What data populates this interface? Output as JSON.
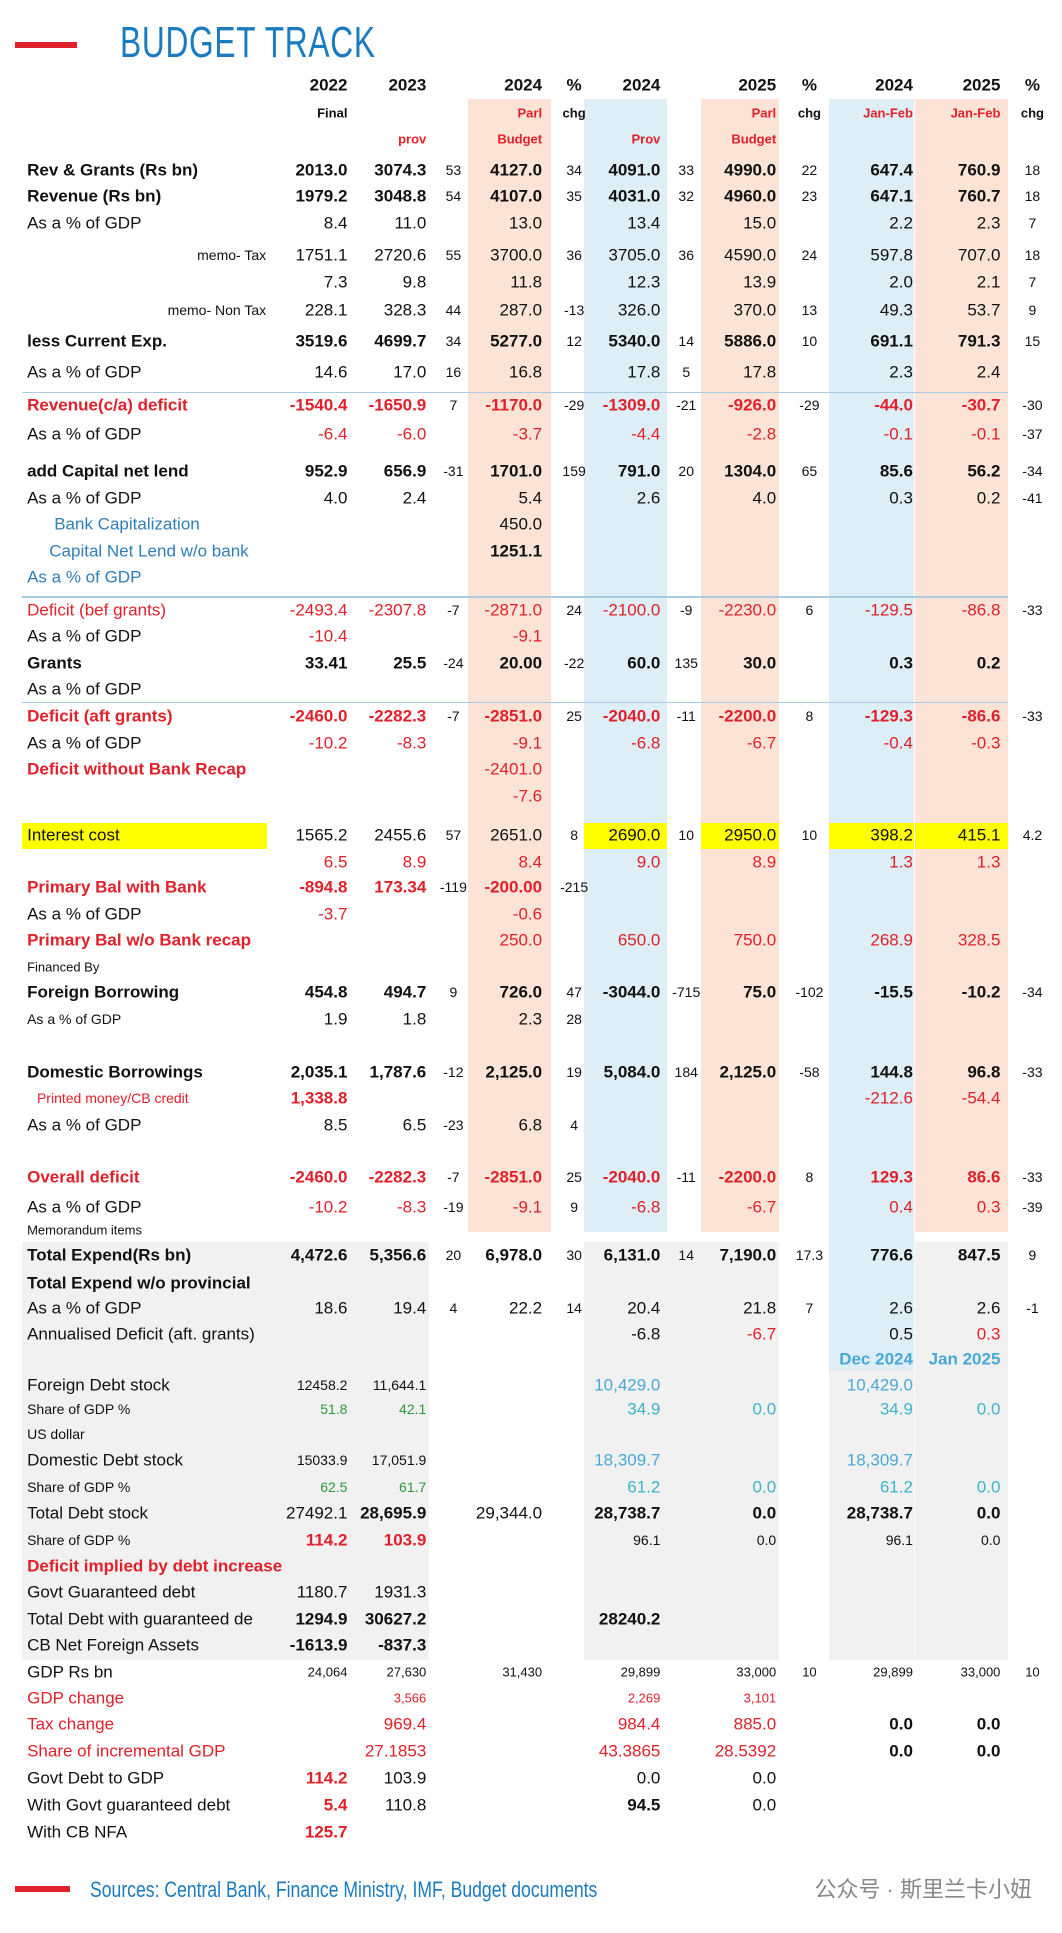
{
  "header": {
    "title": "BUDGET TRACK"
  },
  "columns": [
    [
      "2022",
      "2023",
      null,
      "2024",
      "%",
      "2024",
      null,
      "2025",
      "%",
      "2024",
      "2025",
      "%"
    ],
    [
      "Final",
      null,
      null,
      "Parl",
      "chg",
      null,
      null,
      "Parl",
      "chg",
      "Jan-Feb",
      "Jan-Feb",
      "chg"
    ],
    [
      null,
      "prov",
      null,
      "Budget",
      null,
      "Prov",
      null,
      "Budget",
      null,
      null,
      null,
      null
    ]
  ],
  "rows": [
    {
      "label": "Rev & Grants (Rs bn)",
      "cells": [
        "2013.0",
        "3074.3",
        "53",
        "4127.0",
        "34",
        "4091.0",
        "33",
        "4990.0",
        "22",
        "647.4",
        "760.9",
        "18"
      ]
    },
    {
      "label": "Revenue (Rs bn)",
      "cells": [
        "1979.2",
        "3048.8",
        "54",
        "4107.0",
        "35",
        "4031.0",
        "32",
        "4960.0",
        "23",
        "647.1",
        "760.7",
        "18"
      ]
    },
    {
      "label": "As a % of GDP",
      "cells": [
        "8.4",
        "11.0",
        null,
        "13.0",
        null,
        "13.4",
        null,
        "15.0",
        null,
        "2.2",
        "2.3",
        "7"
      ]
    },
    {
      "label": "memo- Tax",
      "cells": [
        "1751.1",
        "2720.6",
        "55",
        "3700.0",
        "36",
        "3705.0",
        "36",
        "4590.0",
        "24",
        "597.8",
        "707.0",
        "18"
      ]
    },
    {
      "label": null,
      "cells": [
        "7.3",
        "9.8",
        null,
        "11.8",
        null,
        "12.3",
        null,
        "13.9",
        null,
        "2.0",
        "2.1",
        "7"
      ]
    },
    {
      "label": "memo- Non Tax",
      "cells": [
        "228.1",
        "328.3",
        "44",
        "287.0",
        "-13",
        "326.0",
        null,
        "370.0",
        "13",
        "49.3",
        "53.7",
        "9"
      ]
    },
    {
      "label": "less Current Exp.",
      "cells": [
        "3519.6",
        "4699.7",
        "34",
        "5277.0",
        "12",
        "5340.0",
        "14",
        "5886.0",
        "10",
        "691.1",
        "791.3",
        "15"
      ]
    },
    {
      "label": "As a % of GDP",
      "cells": [
        "14.6",
        "17.0",
        "16",
        "16.8",
        null,
        "17.8",
        "5",
        "17.8",
        null,
        "2.3",
        "2.4",
        null
      ]
    },
    {
      "label": "Revenue(c/a) deficit",
      "cells": [
        "-1540.4",
        "-1650.9",
        "7",
        "-1170.0",
        "-29",
        "-1309.0",
        "-21",
        "-926.0",
        "-29",
        "-44.0",
        "-30.7",
        "-30"
      ]
    },
    {
      "label": "As a % of GDP",
      "cells": [
        "-6.4",
        "-6.0",
        null,
        "-3.7",
        null,
        "-4.4",
        null,
        "-2.8",
        null,
        "-0.1",
        "-0.1",
        "-37"
      ]
    },
    {
      "label": "add Capital net lend",
      "cells": [
        "952.9",
        "656.9",
        "-31",
        "1701.0",
        "159",
        "791.0",
        "20",
        "1304.0",
        "65",
        "85.6",
        "56.2",
        "-34"
      ]
    },
    {
      "label": "As a % of GDP",
      "cells": [
        "4.0",
        "2.4",
        null,
        "5.4",
        null,
        "2.6",
        null,
        "4.0",
        null,
        "0.3",
        "0.2",
        "-41"
      ]
    },
    {
      "label": "Bank Capitalization",
      "cells": [
        null,
        null,
        null,
        "450.0",
        null,
        null,
        null,
        null,
        null,
        null,
        null,
        null
      ]
    },
    {
      "label": "Capital Net Lend w/o bank",
      "cells": [
        null,
        null,
        null,
        "1251.1",
        null,
        null,
        null,
        null,
        null,
        null,
        null,
        null
      ]
    },
    {
      "label": "As a % of GDP",
      "cells": [
        null,
        null,
        null,
        null,
        null,
        null,
        null,
        null,
        null,
        null,
        null,
        null
      ]
    },
    {
      "label": "Deficit (bef grants)",
      "cells": [
        "-2493.4",
        "-2307.8",
        "-7",
        "-2871.0",
        "24",
        "-2100.0",
        "-9",
        "-2230.0",
        "6",
        "-129.5",
        "-86.8",
        "-33"
      ]
    },
    {
      "label": "As a % of GDP",
      "cells": [
        "-10.4",
        null,
        null,
        "-9.1",
        null,
        null,
        null,
        null,
        null,
        null,
        null,
        null
      ]
    },
    {
      "label": "Grants",
      "cells": [
        "33.41",
        "25.5",
        "-24",
        "20.00",
        "-22",
        "60.0",
        "135",
        "30.0",
        null,
        "0.3",
        "0.2",
        null
      ]
    },
    {
      "label": "As a % of GDP",
      "cells": [
        null,
        null,
        null,
        null,
        null,
        null,
        null,
        null,
        null,
        null,
        null,
        null
      ]
    },
    {
      "label": "Deficit (aft grants)",
      "cells": [
        "-2460.0",
        "-2282.3",
        "-7",
        "-2851.0",
        "25",
        "-2040.0",
        "-11",
        "-2200.0",
        "8",
        "-129.3",
        "-86.6",
        "-33"
      ]
    },
    {
      "label": "As a % of GDP",
      "cells": [
        "-10.2",
        "-8.3",
        null,
        "-9.1",
        null,
        "-6.8",
        null,
        "-6.7",
        null,
        "-0.4",
        "-0.3",
        null
      ]
    },
    {
      "label": "Deficit without Bank Recap",
      "cells": [
        null,
        null,
        null,
        "-2401.0",
        null,
        null,
        null,
        null,
        null,
        null,
        null,
        null
      ]
    },
    {
      "label": null,
      "cells": [
        null,
        null,
        null,
        "-7.6",
        null,
        null,
        null,
        null,
        null,
        null,
        null,
        null
      ]
    },
    {
      "label": "Interest cost",
      "cells": [
        "1565.2",
        "2455.6",
        "57",
        "2651.0",
        "8",
        "2690.0",
        "10",
        "2950.0",
        "10",
        "398.2",
        "415.1",
        "4.2"
      ]
    },
    {
      "label": null,
      "cells": [
        "6.5",
        "8.9",
        null,
        "8.4",
        null,
        "9.0",
        null,
        "8.9",
        null,
        "1.3",
        "1.3",
        null
      ]
    },
    {
      "label": "Primary Bal with Bank",
      "cells": [
        "-894.8",
        "173.34",
        "-119",
        "-200.00",
        "-215",
        null,
        null,
        null,
        null,
        null,
        null,
        null
      ]
    },
    {
      "label": "As a % of GDP",
      "cells": [
        "-3.7",
        null,
        null,
        "-0.6",
        null,
        null,
        null,
        null,
        null,
        null,
        null,
        null
      ]
    },
    {
      "label": "Primary Bal w/o Bank recap",
      "cells": [
        null,
        null,
        null,
        "250.0",
        null,
        "650.0",
        null,
        "750.0",
        null,
        "268.9",
        "328.5",
        null
      ]
    },
    {
      "label": "Financed By",
      "cells": [
        null,
        null,
        null,
        null,
        null,
        null,
        null,
        null,
        null,
        null,
        null,
        null
      ]
    },
    {
      "label": "Foreign Borrowing",
      "cells": [
        "454.8",
        "494.7",
        "9",
        "726.0",
        "47",
        "-3044.0",
        "-715",
        "75.0",
        "-102",
        "-15.5",
        "-10.2",
        "-34"
      ]
    },
    {
      "label": "As a % of GDP",
      "cells": [
        "1.9",
        "1.8",
        null,
        "2.3",
        "28",
        null,
        null,
        null,
        null,
        null,
        null,
        null
      ]
    },
    {
      "label": "Domestic Borrowings",
      "cells": [
        "2,035.1",
        "1,787.6",
        "-12",
        "2,125.0",
        "19",
        "5,084.0",
        "184",
        "2,125.0",
        "-58",
        "144.8",
        "96.8",
        "-33"
      ]
    },
    {
      "label": "Printed money/CB credit",
      "cells": [
        "1,338.8",
        null,
        null,
        null,
        null,
        null,
        null,
        null,
        null,
        "-212.6",
        "-54.4",
        null
      ]
    },
    {
      "label": "As a % of GDP",
      "cells": [
        "8.5",
        "6.5",
        "-23",
        "6.8",
        "4",
        null,
        null,
        null,
        null,
        null,
        null,
        null
      ]
    },
    {
      "label": "Overall deficit",
      "cells": [
        "-2460.0",
        "-2282.3",
        "-7",
        "-2851.0",
        "25",
        "-2040.0",
        "-11",
        "-2200.0",
        "8",
        "129.3",
        "86.6",
        "-33"
      ]
    },
    {
      "label": "As a % of GDP",
      "cells": [
        "-10.2",
        "-8.3",
        "-19",
        "-9.1",
        "9",
        "-6.8",
        null,
        "-6.7",
        null,
        "0.4",
        "0.3",
        "-39"
      ]
    },
    {
      "label": "Memorandum items",
      "cells": [
        null,
        null,
        null,
        null,
        null,
        null,
        null,
        null,
        null,
        null,
        null,
        null
      ]
    },
    {
      "label": "Total Expend(Rs bn)",
      "cells": [
        "4,472.6",
        "5,356.6",
        "20",
        "6,978.0",
        "30",
        "6,131.0",
        "14",
        "7,190.0",
        "17.3",
        "776.6",
        "847.5",
        "9"
      ]
    },
    {
      "label": "Total Expend w/o provincial",
      "cells": [
        null,
        null,
        null,
        null,
        null,
        null,
        null,
        null,
        null,
        null,
        null,
        null
      ]
    },
    {
      "label": "As a % of GDP",
      "cells": [
        "18.6",
        "19.4",
        "4",
        "22.2",
        "14",
        "20.4",
        null,
        "21.8",
        "7",
        "2.6",
        "2.6",
        "-1"
      ]
    },
    {
      "label": "Annualised Deficit (aft. grants)",
      "cells": [
        null,
        null,
        null,
        null,
        null,
        "-6.8",
        null,
        "-6.7",
        null,
        "0.5",
        "0.3",
        null
      ]
    },
    {
      "label": null,
      "cells": [
        null,
        null,
        null,
        null,
        null,
        null,
        null,
        null,
        null,
        "Dec 2024",
        "Jan 2025",
        null
      ]
    },
    {
      "label": "Foreign Debt stock",
      "cells": [
        "12458.2",
        "11,644.1",
        null,
        null,
        null,
        "10,429.0",
        null,
        null,
        null,
        "10,429.0",
        null,
        null
      ]
    },
    {
      "label": "Share of GDP %",
      "cells": [
        "51.8",
        "42.1",
        null,
        null,
        null,
        "34.9",
        null,
        "0.0",
        null,
        "34.9",
        "0.0",
        null
      ]
    },
    {
      "label": "US dollar",
      "cells": [
        null,
        null,
        null,
        null,
        null,
        null,
        null,
        null,
        null,
        null,
        null,
        null
      ]
    },
    {
      "label": "Domestic Debt stock",
      "cells": [
        "15033.9",
        "17,051.9",
        null,
        null,
        null,
        "18,309.7",
        null,
        null,
        null,
        "18,309.7",
        null,
        null
      ]
    },
    {
      "label": "Share of GDP %",
      "cells": [
        "62.5",
        "61.7",
        null,
        null,
        null,
        "61.2",
        null,
        "0.0",
        null,
        "61.2",
        "0.0",
        null
      ]
    },
    {
      "label": "Total Debt stock",
      "cells": [
        "27492.1",
        "28,695.9",
        null,
        "29,344.0",
        null,
        "28,738.7",
        null,
        "0.0",
        null,
        "28,738.7",
        "0.0",
        null
      ]
    },
    {
      "label": "Share of GDP %",
      "cells": [
        "114.2",
        "103.9",
        null,
        null,
        null,
        "96.1",
        null,
        "0.0",
        null,
        "96.1",
        "0.0",
        null
      ]
    },
    {
      "label": "Deficit implied by debt increase",
      "cells": [
        null,
        null,
        null,
        null,
        null,
        null,
        null,
        null,
        null,
        null,
        null,
        null
      ]
    },
    {
      "label": "Govt Guaranteed debt",
      "cells": [
        "1180.7",
        "1931.3",
        null,
        null,
        null,
        null,
        null,
        null,
        null,
        null,
        null,
        null
      ]
    },
    {
      "label": "Total Debt with guaranteed de",
      "cells": [
        "1294.9",
        "30627.2",
        null,
        null,
        null,
        "28240.2",
        null,
        null,
        null,
        null,
        null,
        null
      ]
    },
    {
      "label": "CB Net Foreign Assets",
      "cells": [
        "-1613.9",
        "-837.3",
        null,
        null,
        null,
        null,
        null,
        null,
        null,
        null,
        null,
        null
      ]
    },
    {
      "label": "GDP Rs bn",
      "cells": [
        "24,064",
        "27,630",
        null,
        "31,430",
        null,
        "29,899",
        null,
        "33,000",
        "10",
        "29,899",
        "33,000",
        "10"
      ]
    },
    {
      "label": "GDP change",
      "cells": [
        null,
        "3,566",
        null,
        null,
        null,
        "2,269",
        null,
        "3,101",
        null,
        null,
        null,
        null
      ]
    },
    {
      "label": "Tax change",
      "cells": [
        null,
        "969.4",
        null,
        null,
        null,
        "984.4",
        null,
        "885.0",
        null,
        "0.0",
        "0.0",
        null
      ]
    },
    {
      "label": "Share of incremental GDP",
      "cells": [
        null,
        "27.1853",
        null,
        null,
        null,
        "43.3865",
        null,
        "28.5392",
        null,
        "0.0",
        "0.0",
        null
      ]
    },
    {
      "label": "Govt Debt to GDP",
      "cells": [
        "114.2",
        "103.9",
        null,
        null,
        null,
        "0.0",
        null,
        "0.0",
        null,
        null,
        null,
        null
      ]
    },
    {
      "label": "With Govt guaranteed debt",
      "cells": [
        "5.4",
        "110.8",
        null,
        null,
        null,
        "94.5",
        null,
        "0.0",
        null,
        null,
        null,
        null
      ]
    },
    {
      "label": "With CB NFA",
      "cells": [
        "125.7",
        null,
        null,
        null,
        null,
        null,
        null,
        null,
        null,
        null,
        null,
        null
      ]
    }
  ],
  "footer": {
    "sources": "Sources: Central Bank, Finance Ministry, IMF, Budget documents",
    "watermark": "公众号 · 斯里兰卡小妞"
  }
}
